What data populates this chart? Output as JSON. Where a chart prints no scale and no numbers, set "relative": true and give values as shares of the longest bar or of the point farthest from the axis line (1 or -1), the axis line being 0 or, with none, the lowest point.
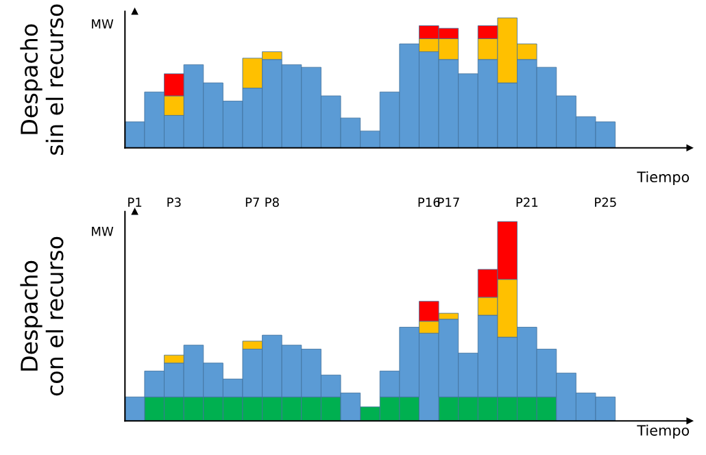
{
  "chart_data": [
    {
      "type": "bar",
      "stacked": true,
      "relative": true,
      "ylabel": "Despacho\nsin el recurso",
      "xlabel": "Tiempo",
      "annotations": [
        "MW"
      ],
      "categories": [
        "P1",
        null,
        "P3",
        null,
        null,
        null,
        "P7",
        "P8",
        null,
        null,
        null,
        null,
        null,
        null,
        null,
        "P16",
        "P17",
        null,
        null,
        null,
        "P21",
        null,
        null,
        null,
        "P25"
      ],
      "series": [
        {
          "color": "#5b9bd5",
          "values": [
            0.2,
            0.43,
            0.25,
            0.64,
            0.5,
            0.36,
            0.46,
            0.68,
            0.64,
            0.62,
            0.4,
            0.23,
            0.13,
            0.43,
            0.8,
            0.74,
            0.68,
            0.57,
            0.68,
            0.5,
            0.68,
            0.62,
            0.4,
            0.24,
            0.2
          ]
        },
        {
          "color": "#ffc000",
          "values": [
            0,
            0,
            0.15,
            0,
            0,
            0,
            0.23,
            0.06,
            0,
            0,
            0,
            0,
            0,
            0,
            0,
            0.1,
            0.16,
            0,
            0.16,
            0.5,
            0.12,
            0,
            0,
            0,
            0
          ]
        },
        {
          "color": "#ff0000",
          "values": [
            0,
            0,
            0.17,
            0,
            0,
            0,
            0,
            0,
            0,
            0,
            0,
            0,
            0,
            0,
            0,
            0.1,
            0.08,
            0,
            0.1,
            0,
            0,
            0,
            0,
            0,
            0
          ]
        }
      ]
    },
    {
      "type": "bar",
      "stacked": true,
      "relative": true,
      "ylabel": "Despacho\ncon el recurso",
      "xlabel": "Tiempo",
      "annotations": [
        "MW"
      ],
      "tick_labels": false,
      "categories": [
        null,
        null,
        null,
        null,
        null,
        null,
        null,
        null,
        null,
        null,
        null,
        null,
        null,
        null,
        null,
        null,
        null,
        null,
        null,
        null,
        null,
        null,
        null,
        null,
        null
      ],
      "series": [
        {
          "color": "#00b050",
          "values": [
            0,
            0.12,
            0.12,
            0.12,
            0.12,
            0.12,
            0.12,
            0.12,
            0.12,
            0.12,
            0.12,
            0,
            0.07,
            0.12,
            0.12,
            0,
            0.12,
            0.12,
            0.12,
            0.12,
            0.12,
            0.12,
            0,
            0,
            0
          ]
        },
        {
          "color": "#5b9bd5",
          "values": [
            0.12,
            0.13,
            0.17,
            0.26,
            0.17,
            0.09,
            0.24,
            0.31,
            0.26,
            0.24,
            0.11,
            0.14,
            0,
            0.13,
            0.35,
            0.44,
            0.39,
            0.22,
            0.41,
            0.3,
            0.35,
            0.24,
            0.24,
            0.14,
            0.12
          ]
        },
        {
          "color": "#ffc000",
          "values": [
            0,
            0,
            0.04,
            0,
            0,
            0,
            0.04,
            0,
            0,
            0,
            0,
            0,
            0,
            0,
            0,
            0.06,
            0.03,
            0,
            0.09,
            0.29,
            0,
            0,
            0,
            0,
            0
          ]
        },
        {
          "color": "#ff0000",
          "values": [
            0,
            0,
            0,
            0,
            0,
            0,
            0,
            0,
            0,
            0,
            0,
            0,
            0,
            0,
            0,
            0.1,
            0,
            0,
            0.14,
            0.29,
            0,
            0,
            0,
            0,
            0
          ]
        }
      ]
    }
  ]
}
